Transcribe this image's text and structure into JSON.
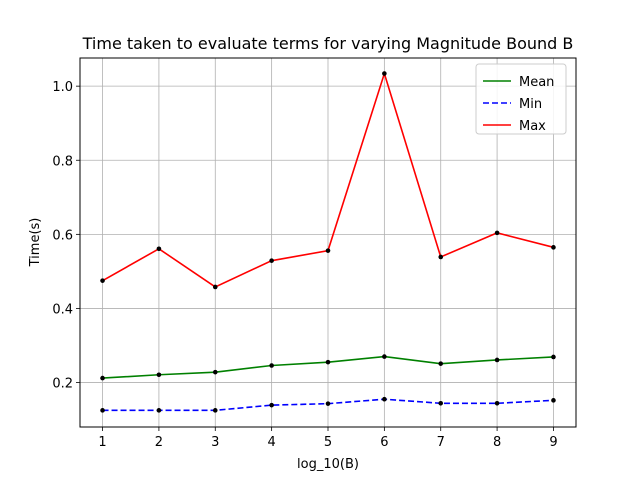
{
  "chart_data": {
    "type": "line",
    "title": "Time taken to evaluate terms for varying Magnitude Bound B",
    "xlabel": "log_10(B)",
    "ylabel": "Time(s)",
    "x": [
      1,
      2,
      3,
      4,
      5,
      6,
      7,
      8,
      9
    ],
    "xlim": [
      0.6,
      9.4
    ],
    "ylim": [
      0.08,
      1.076
    ],
    "xticks": [
      1,
      2,
      3,
      4,
      5,
      6,
      7,
      8,
      9
    ],
    "yticks": [
      0.2,
      0.4,
      0.6,
      0.8,
      1.0
    ],
    "ytick_labels": [
      "0.2",
      "0.4",
      "0.6",
      "0.8",
      "1.0"
    ],
    "grid": true,
    "legend_position": "top-right",
    "series": [
      {
        "name": "Mean",
        "color": "#008000",
        "dash": "solid",
        "values": [
          0.212,
          0.221,
          0.228,
          0.246,
          0.255,
          0.27,
          0.251,
          0.261,
          0.269
        ]
      },
      {
        "name": "Min",
        "color": "#0000ff",
        "dash": "dashed",
        "values": [
          0.125,
          0.125,
          0.125,
          0.139,
          0.143,
          0.155,
          0.144,
          0.144,
          0.152
        ]
      },
      {
        "name": "Max",
        "color": "#ff0000",
        "dash": "solid",
        "values": [
          0.475,
          0.561,
          0.458,
          0.529,
          0.556,
          1.034,
          0.539,
          0.604,
          0.565
        ]
      }
    ]
  }
}
